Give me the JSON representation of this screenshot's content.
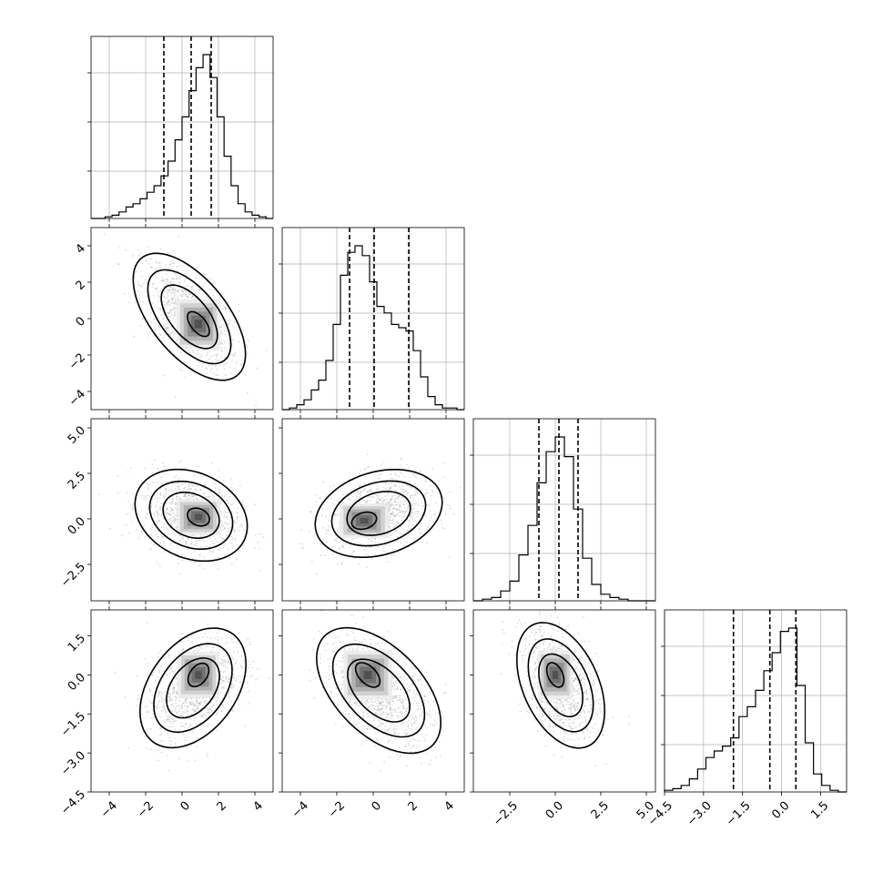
{
  "chart_data": {
    "type": "corner",
    "n_params": 4,
    "title": "",
    "xlabel": "",
    "ylabel": "",
    "grid": true,
    "ranges": [
      [
        -5,
        5
      ],
      [
        -5,
        5
      ],
      [
        -4.5,
        5.5
      ],
      [
        -4.5,
        2.5
      ]
    ],
    "ticks": [
      {
        "values": [
          -4,
          -2,
          0,
          2,
          4
        ],
        "labels": [
          "−4",
          "−2",
          "0",
          "2",
          "4"
        ]
      },
      {
        "values": [
          -4,
          -2,
          0,
          2,
          4
        ],
        "labels": [
          "−4",
          "−2",
          "0",
          "2",
          "4"
        ]
      },
      {
        "values": [
          -2.5,
          0,
          2.5,
          5
        ],
        "labels": [
          "−2.5",
          "0.0",
          "2.5",
          "5.0"
        ]
      },
      {
        "values": [
          -4.5,
          -3,
          -1.5,
          0,
          1.5
        ],
        "labels": [
          "−4.5",
          "−3.0",
          "−1.5",
          "0.0",
          "1.5"
        ]
      }
    ],
    "histograms": [
      {
        "param": 0,
        "bin_edges_range": [
          -5,
          5
        ],
        "counts": [
          0.0,
          0.0,
          0.01,
          0.02,
          0.04,
          0.07,
          0.09,
          0.12,
          0.16,
          0.2,
          0.26,
          0.35,
          0.48,
          0.62,
          0.78,
          0.92,
          1.0,
          0.86,
          0.62,
          0.38,
          0.2,
          0.09,
          0.04,
          0.02,
          0.01,
          0.0
        ],
        "quantiles": [
          -1.0,
          0.5,
          1.6
        ]
      },
      {
        "param": 1,
        "bin_edges_range": [
          -5,
          5
        ],
        "counts": [
          0.0,
          0.01,
          0.03,
          0.06,
          0.12,
          0.18,
          0.3,
          0.52,
          0.82,
          0.96,
          1.0,
          0.94,
          0.78,
          0.63,
          0.59,
          0.52,
          0.5,
          0.48,
          0.36,
          0.2,
          0.08,
          0.03,
          0.01,
          0.01,
          0.0
        ],
        "quantiles": [
          -1.3,
          0.05,
          1.95
        ]
      },
      {
        "param": 2,
        "bin_edges_range": [
          -4.5,
          5.5
        ],
        "counts": [
          0.0,
          0.01,
          0.02,
          0.06,
          0.12,
          0.28,
          0.46,
          0.72,
          0.91,
          1.0,
          0.88,
          0.56,
          0.26,
          0.1,
          0.04,
          0.02,
          0.01,
          0.0,
          0.0,
          0.0
        ],
        "quantiles": [
          -0.9,
          0.2,
          1.25
        ]
      },
      {
        "param": 3,
        "bin_edges_range": [
          -4.5,
          2.5
        ],
        "counts": [
          0.01,
          0.02,
          0.04,
          0.08,
          0.14,
          0.21,
          0.25,
          0.28,
          0.33,
          0.46,
          0.52,
          0.62,
          0.74,
          0.85,
          0.98,
          1.0,
          0.65,
          0.3,
          0.11,
          0.04,
          0.01,
          0.0
        ],
        "quantiles": [
          -1.85,
          -0.45,
          0.55
        ]
      }
    ],
    "scatter_2d": [
      {
        "x_param": 0,
        "y_param": 1,
        "mean": [
          0.4,
          0.1
        ],
        "cov": [
          [
            1.8,
            -1.2
          ],
          [
            -1.2,
            2.3
          ]
        ],
        "density_peak": [
          0.9,
          -0.3
        ]
      },
      {
        "x_param": 0,
        "y_param": 2,
        "mean": [
          0.5,
          0.2
        ],
        "cov": [
          [
            1.8,
            -0.35
          ],
          [
            -0.35,
            1.2
          ]
        ],
        "density_peak": [
          0.9,
          0.1
        ]
      },
      {
        "x_param": 0,
        "y_param": 3,
        "mean": [
          0.6,
          -0.5
        ],
        "cov": [
          [
            1.6,
            0.5
          ],
          [
            0.5,
            1.0
          ]
        ],
        "density_peak": [
          0.9,
          0.0
        ]
      },
      {
        "x_param": 1,
        "y_param": 2,
        "mean": [
          0.3,
          0.3
        ],
        "cov": [
          [
            2.3,
            0.4
          ],
          [
            0.4,
            1.1
          ]
        ],
        "density_peak": [
          -0.5,
          -0.1
        ]
      },
      {
        "x_param": 1,
        "y_param": 3,
        "mean": [
          0.3,
          -0.6
        ],
        "cov": [
          [
            2.2,
            -0.8
          ],
          [
            -0.8,
            1.1
          ]
        ],
        "density_peak": [
          -0.3,
          0.0
        ]
      },
      {
        "x_param": 2,
        "y_param": 3,
        "mean": [
          0.3,
          -0.4
        ],
        "cov": [
          [
            1.1,
            -0.45
          ],
          [
            -0.45,
            1.1
          ]
        ],
        "density_peak": [
          0.0,
          0.0
        ]
      }
    ]
  }
}
